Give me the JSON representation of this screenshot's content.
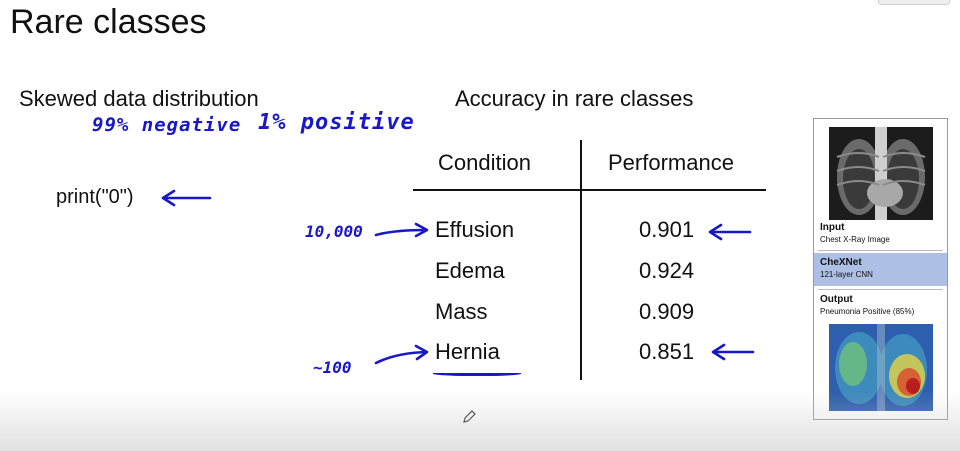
{
  "slide": {
    "title": "Rare classes",
    "left_heading": "Skewed data distribution",
    "right_heading": "Accuracy in rare classes",
    "code_snippet": "print(\"0\")"
  },
  "handwriting": {
    "negative": "99% negative",
    "positive": "1% positive",
    "effusion_count": "10,000",
    "hernia_count": "~100",
    "ink_color": "#1818c8"
  },
  "table": {
    "headers": [
      "Condition",
      "Performance"
    ],
    "rows": [
      {
        "condition": "Effusion",
        "performance": "0.901"
      },
      {
        "condition": "Edema",
        "performance": "0.924"
      },
      {
        "condition": "Mass",
        "performance": "0.909"
      },
      {
        "condition": "Hernia",
        "performance": "0.851"
      }
    ]
  },
  "model_card": {
    "input_title": "Input",
    "input_sub": "Chest X-Ray Image",
    "model_title": "CheXNet",
    "model_sub": "121-layer CNN",
    "output_title": "Output",
    "output_sub": "Pneumonia Positive (85%)",
    "model_bg": "#aebfe6"
  },
  "icons": [
    "arrow-left-icon",
    "arrow-right-icon",
    "pencil-cursor-icon"
  ]
}
